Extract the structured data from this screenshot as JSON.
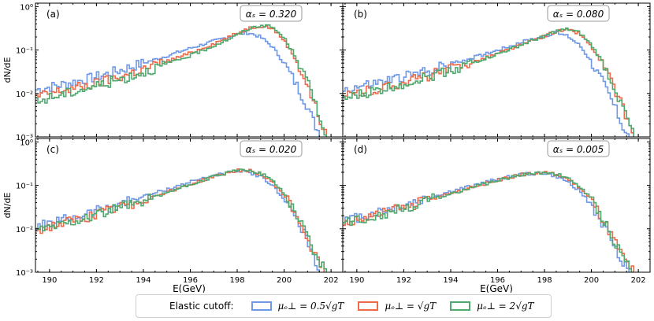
{
  "chart_data": {
    "type": "line",
    "shared": {
      "xlabel": "E(GeV)",
      "ylabel": "dN/dE",
      "xlim": [
        189.4,
        202.5
      ],
      "ylim": [
        0.001,
        1.2
      ],
      "yscale": "log",
      "xticks": [
        190,
        192,
        194,
        196,
        198,
        200,
        202
      ],
      "xtick_labels": [
        "190",
        "192",
        "194",
        "196",
        "198",
        "200",
        "202"
      ],
      "yticks": [
        0.001,
        0.01,
        0.1,
        1
      ],
      "ytick_labels": [
        "10⁻³",
        "10⁻²",
        "10⁻¹",
        "10⁰"
      ],
      "colors": {
        "s05": "#6f98e6",
        "s1": "#ef6a4a",
        "s2": "#4fa96f"
      }
    },
    "legend": {
      "title": "Elastic cutoff:",
      "entries": [
        {
          "key": "s05",
          "label": "μₑ⊥ = 0.5√gT"
        },
        {
          "key": "s1",
          "label": "μₑ⊥ = √gT"
        },
        {
          "key": "s2",
          "label": "μₑ⊥ = 2√gT"
        }
      ]
    },
    "panels": [
      {
        "tag": "(a)",
        "alpha": "αₛ = 0.320",
        "series": [
          {
            "key": "s05",
            "x": [
              189.4,
              190,
              191,
              192,
              193,
              194,
              195,
              196,
              197,
              198,
              198.5,
              199,
              199.5,
              200,
              200.5,
              201,
              201.3,
              201.6
            ],
            "y": [
              0.012,
              0.014,
              0.018,
              0.024,
              0.034,
              0.05,
              0.073,
              0.11,
              0.16,
              0.23,
              0.25,
              0.2,
              0.12,
              0.05,
              0.017,
              0.005,
              0.002,
              0.001
            ]
          },
          {
            "key": "s1",
            "x": [
              189.4,
              190,
              191,
              192,
              193,
              194,
              195,
              196,
              197,
              198,
              198.5,
              199,
              199.5,
              200,
              200.5,
              201,
              201.4,
              201.8
            ],
            "y": [
              0.008,
              0.01,
              0.013,
              0.017,
              0.024,
              0.036,
              0.055,
              0.085,
              0.14,
              0.24,
              0.32,
              0.36,
              0.32,
              0.17,
              0.06,
              0.015,
              0.004,
              0.001
            ]
          },
          {
            "key": "s2",
            "x": [
              189.4,
              190,
              191,
              192,
              193,
              194,
              195,
              196,
              197,
              198,
              198.5,
              199,
              199.5,
              200,
              200.5,
              201,
              201.4,
              201.8
            ],
            "y": [
              0.006,
              0.008,
              0.011,
              0.015,
              0.021,
              0.031,
              0.047,
              0.074,
              0.125,
              0.22,
              0.31,
              0.37,
              0.34,
              0.19,
              0.07,
              0.018,
              0.005,
              0.001
            ]
          }
        ]
      },
      {
        "tag": "(b)",
        "alpha": "αₛ = 0.080",
        "series": [
          {
            "key": "s05",
            "x": [
              189.4,
              190,
              191,
              192,
              193,
              194,
              195,
              196,
              197,
              198,
              198.5,
              199,
              199.5,
              200,
              200.5,
              201,
              201.3,
              201.6
            ],
            "y": [
              0.012,
              0.014,
              0.018,
              0.024,
              0.033,
              0.047,
              0.068,
              0.1,
              0.15,
              0.21,
              0.25,
              0.21,
              0.13,
              0.055,
              0.018,
              0.005,
              0.002,
              0.001
            ]
          },
          {
            "key": "s1",
            "x": [
              189.4,
              190,
              191,
              192,
              193,
              194,
              195,
              196,
              197,
              198,
              198.5,
              199,
              199.5,
              200,
              200.5,
              201,
              201.4,
              201.8
            ],
            "y": [
              0.008,
              0.01,
              0.013,
              0.018,
              0.025,
              0.036,
              0.054,
              0.083,
              0.13,
              0.21,
              0.27,
              0.29,
              0.24,
              0.12,
              0.045,
              0.012,
              0.004,
              0.001
            ]
          },
          {
            "key": "s2",
            "x": [
              189.4,
              190,
              191,
              192,
              193,
              194,
              195,
              196,
              197,
              198,
              198.5,
              199,
              199.5,
              200,
              200.5,
              201,
              201.4,
              201.8
            ],
            "y": [
              0.007,
              0.009,
              0.012,
              0.017,
              0.024,
              0.035,
              0.052,
              0.08,
              0.13,
              0.21,
              0.27,
              0.3,
              0.25,
              0.13,
              0.05,
              0.013,
              0.004,
              0.001
            ]
          }
        ]
      },
      {
        "tag": "(c)",
        "alpha": "αₛ = 0.020",
        "series": [
          {
            "key": "s05",
            "x": [
              189.4,
              190,
              191,
              192,
              193,
              194,
              195,
              196,
              197,
              198,
              198.5,
              199,
              199.5,
              200,
              200.5,
              201,
              201.3,
              201.6
            ],
            "y": [
              0.011,
              0.013,
              0.018,
              0.026,
              0.038,
              0.055,
              0.08,
              0.12,
              0.17,
              0.21,
              0.2,
              0.16,
              0.1,
              0.05,
              0.018,
              0.005,
              0.002,
              0.001
            ]
          },
          {
            "key": "s1",
            "x": [
              189.4,
              190,
              191,
              192,
              193,
              194,
              195,
              196,
              197,
              198,
              198.5,
              199,
              199.5,
              200,
              200.5,
              201,
              201.4,
              201.8
            ],
            "y": [
              0.009,
              0.011,
              0.015,
              0.021,
              0.031,
              0.046,
              0.07,
              0.105,
              0.16,
              0.22,
              0.22,
              0.18,
              0.12,
              0.06,
              0.022,
              0.006,
              0.002,
              0.001
            ]
          },
          {
            "key": "s2",
            "x": [
              189.4,
              190,
              191,
              192,
              193,
              194,
              195,
              196,
              197,
              198,
              198.5,
              199,
              199.5,
              200,
              200.5,
              201,
              201.4,
              201.8
            ],
            "y": [
              0.009,
              0.011,
              0.015,
              0.021,
              0.03,
              0.045,
              0.068,
              0.103,
              0.16,
              0.22,
              0.23,
              0.19,
              0.13,
              0.065,
              0.024,
              0.007,
              0.002,
              0.001
            ]
          }
        ]
      },
      {
        "tag": "(d)",
        "alpha": "αₛ = 0.005",
        "series": [
          {
            "key": "s05",
            "x": [
              189.4,
              190,
              191,
              192,
              193,
              194,
              195,
              196,
              197,
              198,
              198.5,
              199,
              199.5,
              200,
              200.5,
              201,
              201.3,
              201.6
            ],
            "y": [
              0.015,
              0.018,
              0.025,
              0.035,
              0.05,
              0.072,
              0.1,
              0.14,
              0.18,
              0.19,
              0.16,
              0.12,
              0.075,
              0.035,
              0.012,
              0.004,
              0.002,
              0.001
            ]
          },
          {
            "key": "s1",
            "x": [
              189.4,
              190,
              191,
              192,
              193,
              194,
              195,
              196,
              197,
              198,
              198.5,
              199,
              199.5,
              200,
              200.5,
              201,
              201.4,
              201.8
            ],
            "y": [
              0.013,
              0.016,
              0.022,
              0.031,
              0.045,
              0.065,
              0.093,
              0.13,
              0.175,
              0.2,
              0.18,
              0.14,
              0.09,
              0.045,
              0.016,
              0.005,
              0.002,
              0.001
            ]
          },
          {
            "key": "s2",
            "x": [
              189.4,
              190,
              191,
              192,
              193,
              194,
              195,
              196,
              197,
              198,
              198.5,
              199,
              199.5,
              200,
              200.5,
              201,
              201.4,
              201.8
            ],
            "y": [
              0.013,
              0.016,
              0.021,
              0.03,
              0.044,
              0.064,
              0.092,
              0.13,
              0.175,
              0.2,
              0.185,
              0.145,
              0.095,
              0.048,
              0.017,
              0.005,
              0.002,
              0.001
            ]
          }
        ]
      }
    ]
  }
}
